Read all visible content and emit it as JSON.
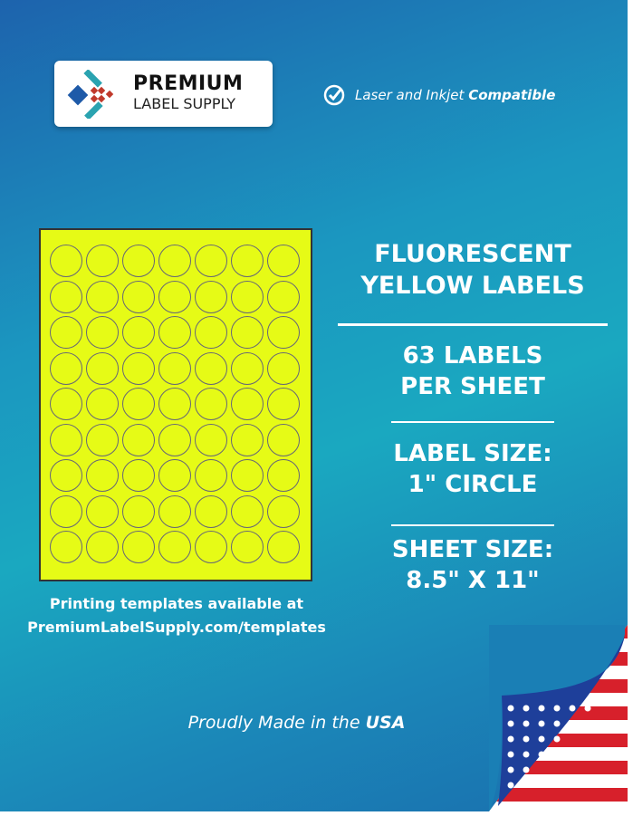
{
  "logo": {
    "line1": "PREMIUM",
    "line2": "LABEL SUPPLY"
  },
  "compat": {
    "icon": "check-circle-icon",
    "text": "Laser and Inkjet",
    "bold": "Compatible"
  },
  "sheet": {
    "columns": 7,
    "rows": 9,
    "color": "#e6fb16"
  },
  "title": {
    "line1": "FLUORESCENT",
    "line2": "YELLOW LABELS"
  },
  "count": {
    "line1": "63 LABELS",
    "line2": "PER SHEET"
  },
  "label_size": {
    "line1": "LABEL SIZE:",
    "line2": "1\" CIRCLE"
  },
  "sheet_size": {
    "line1": "SHEET SIZE:",
    "line2": "8.5\" X 11\""
  },
  "templates": {
    "line1": "Printing templates available at",
    "line2": "PremiumLabelSupply.com/templates"
  },
  "made": {
    "text": "Proudly Made in the",
    "bold": "USA"
  }
}
